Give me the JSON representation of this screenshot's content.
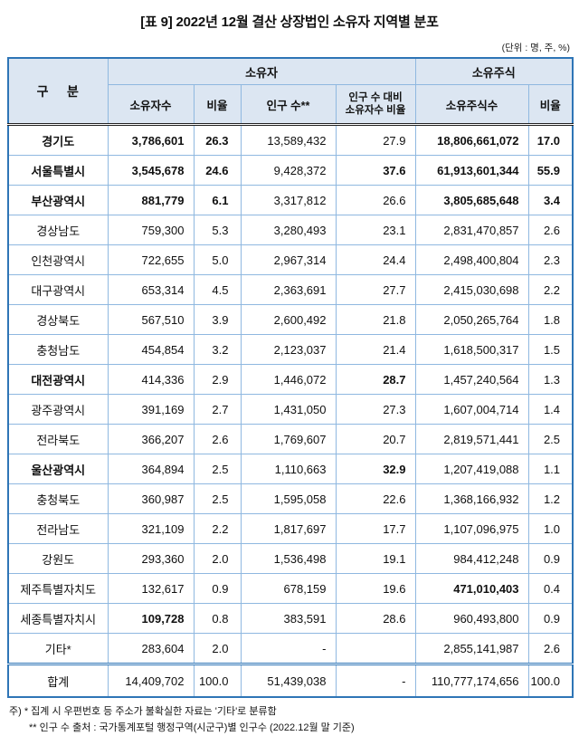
{
  "page": {
    "title": "[표 9] 2022년 12월 결산 상장법인 소유자 지역별 분포",
    "unit_note": "(단위 : 명, 주, %)"
  },
  "colors": {
    "border_outer": "#2e75b6",
    "grid_line": "#8fb8e0",
    "header_bg": "#dce6f2"
  },
  "table": {
    "category_header": "구    분",
    "group_headers": [
      {
        "label": "소유자"
      },
      {
        "label": "소유주식"
      }
    ],
    "sub_headers": [
      "소유자수",
      "비율",
      "인구 수**",
      "인구 수 대비\n소유자수 비율",
      "소유주식수",
      "비율"
    ],
    "rows": [
      {
        "cells": [
          "경기도",
          "3,786,601",
          "26.3",
          "13,589,432",
          "27.9",
          "18,806,661,072",
          "17.0"
        ],
        "bold": [
          1,
          1,
          1,
          0,
          0,
          1,
          1
        ]
      },
      {
        "cells": [
          "서울특별시",
          "3,545,678",
          "24.6",
          "9,428,372",
          "37.6",
          "61,913,601,344",
          "55.9"
        ],
        "bold": [
          1,
          1,
          1,
          0,
          1,
          1,
          1
        ]
      },
      {
        "cells": [
          "부산광역시",
          "881,779",
          "6.1",
          "3,317,812",
          "26.6",
          "3,805,685,648",
          "3.4"
        ],
        "bold": [
          1,
          1,
          1,
          0,
          0,
          1,
          1
        ]
      },
      {
        "cells": [
          "경상남도",
          "759,300",
          "5.3",
          "3,280,493",
          "23.1",
          "2,831,470,857",
          "2.6"
        ],
        "bold": [
          0,
          0,
          0,
          0,
          0,
          0,
          0
        ]
      },
      {
        "cells": [
          "인천광역시",
          "722,655",
          "5.0",
          "2,967,314",
          "24.4",
          "2,498,400,804",
          "2.3"
        ],
        "bold": [
          0,
          0,
          0,
          0,
          0,
          0,
          0
        ]
      },
      {
        "cells": [
          "대구광역시",
          "653,314",
          "4.5",
          "2,363,691",
          "27.7",
          "2,415,030,698",
          "2.2"
        ],
        "bold": [
          0,
          0,
          0,
          0,
          0,
          0,
          0
        ]
      },
      {
        "cells": [
          "경상북도",
          "567,510",
          "3.9",
          "2,600,492",
          "21.8",
          "2,050,265,764",
          "1.8"
        ],
        "bold": [
          0,
          0,
          0,
          0,
          0,
          0,
          0
        ]
      },
      {
        "cells": [
          "충청남도",
          "454,854",
          "3.2",
          "2,123,037",
          "21.4",
          "1,618,500,317",
          "1.5"
        ],
        "bold": [
          0,
          0,
          0,
          0,
          0,
          0,
          0
        ]
      },
      {
        "cells": [
          "대전광역시",
          "414,336",
          "2.9",
          "1,446,072",
          "28.7",
          "1,457,240,564",
          "1.3"
        ],
        "bold": [
          1,
          0,
          0,
          0,
          1,
          0,
          0
        ]
      },
      {
        "cells": [
          "광주광역시",
          "391,169",
          "2.7",
          "1,431,050",
          "27.3",
          "1,607,004,714",
          "1.4"
        ],
        "bold": [
          0,
          0,
          0,
          0,
          0,
          0,
          0
        ]
      },
      {
        "cells": [
          "전라북도",
          "366,207",
          "2.6",
          "1,769,607",
          "20.7",
          "2,819,571,441",
          "2.5"
        ],
        "bold": [
          0,
          0,
          0,
          0,
          0,
          0,
          0
        ]
      },
      {
        "cells": [
          "울산광역시",
          "364,894",
          "2.5",
          "1,110,663",
          "32.9",
          "1,207,419,088",
          "1.1"
        ],
        "bold": [
          1,
          0,
          0,
          0,
          1,
          0,
          0
        ]
      },
      {
        "cells": [
          "충청북도",
          "360,987",
          "2.5",
          "1,595,058",
          "22.6",
          "1,368,166,932",
          "1.2"
        ],
        "bold": [
          0,
          0,
          0,
          0,
          0,
          0,
          0
        ]
      },
      {
        "cells": [
          "전라남도",
          "321,109",
          "2.2",
          "1,817,697",
          "17.7",
          "1,107,096,975",
          "1.0"
        ],
        "bold": [
          0,
          0,
          0,
          0,
          0,
          0,
          0
        ]
      },
      {
        "cells": [
          "강원도",
          "293,360",
          "2.0",
          "1,536,498",
          "19.1",
          "984,412,248",
          "0.9"
        ],
        "bold": [
          0,
          0,
          0,
          0,
          0,
          0,
          0
        ]
      },
      {
        "cells": [
          "제주특별자치도",
          "132,617",
          "0.9",
          "678,159",
          "19.6",
          "471,010,403",
          "0.4"
        ],
        "bold": [
          0,
          0,
          0,
          0,
          0,
          1,
          0
        ]
      },
      {
        "cells": [
          "세종특별자치시",
          "109,728",
          "0.8",
          "383,591",
          "28.6",
          "960,493,800",
          "0.9"
        ],
        "bold": [
          0,
          1,
          0,
          0,
          0,
          0,
          0
        ]
      },
      {
        "cells": [
          "기타*",
          "283,604",
          "2.0",
          "-",
          "",
          "2,855,141,987",
          "2.6"
        ],
        "bold": [
          0,
          0,
          0,
          0,
          0,
          0,
          0
        ]
      }
    ],
    "total_row": {
      "cells": [
        "합계",
        "14,409,702",
        "100.0",
        "51,439,038",
        "-",
        "110,777,174,656",
        "100.0"
      ],
      "bold": [
        0,
        0,
        0,
        0,
        0,
        0,
        0
      ]
    }
  },
  "footnotes": {
    "line1": "주) * 집계 시 우편번호 등 주소가 불확실한 자료는 '기타'로 분류함",
    "line2": "** 인구 수 출처 : 국가통계포털 행정구역(시군구)별 인구수 (2022.12월 말 기준)"
  }
}
